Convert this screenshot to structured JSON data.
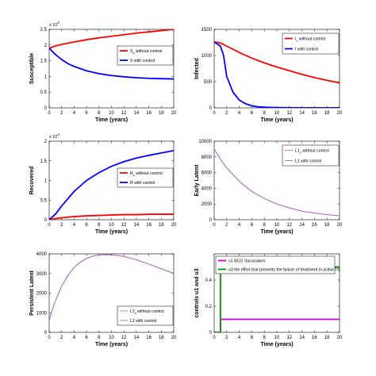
{
  "chart_data": [
    {
      "type": "line",
      "xlabel": "Time (years)",
      "ylabel": "Susceptible",
      "multiplier": "x 10^4",
      "xlim": [
        0,
        20
      ],
      "ylim": [
        0,
        2.5
      ],
      "xticks": [
        0,
        2,
        4,
        6,
        8,
        10,
        12,
        14,
        16,
        18,
        20
      ],
      "yticks": [
        0,
        0.5,
        1,
        1.5,
        2,
        2.5
      ],
      "ytick_labels": [
        "0",
        "0.5",
        "1",
        "1.5",
        "2",
        "2.5"
      ],
      "legend": "top-right",
      "grid": false,
      "series": [
        {
          "name": "S_s without control",
          "main": "S",
          "sub": "s",
          "rest": " without control",
          "color": "#ff0000",
          "x": [
            0,
            1,
            2,
            4,
            6,
            8,
            10,
            12,
            14,
            16,
            18,
            20
          ],
          "y": [
            1.9,
            1.97,
            2.02,
            2.1,
            2.17,
            2.23,
            2.28,
            2.33,
            2.38,
            2.42,
            2.46,
            2.5
          ]
        },
        {
          "name": "S with control",
          "main": "S with control",
          "color": "#0000ff",
          "x": [
            0,
            1,
            2,
            3,
            4,
            6,
            8,
            10,
            12,
            14,
            16,
            18,
            20
          ],
          "y": [
            1.9,
            1.7,
            1.54,
            1.41,
            1.32,
            1.18,
            1.09,
            1.03,
            0.99,
            0.96,
            0.94,
            0.93,
            0.92
          ]
        }
      ]
    },
    {
      "type": "line",
      "xlabel": "Time (years)",
      "ylabel": "Infected",
      "xlim": [
        0,
        20
      ],
      "ylim": [
        0,
        1500
      ],
      "xticks": [
        0,
        2,
        4,
        6,
        8,
        10,
        12,
        14,
        16,
        18,
        20
      ],
      "yticks": [
        0,
        500,
        1000,
        1500
      ],
      "ytick_labels": [
        "0",
        "500",
        "1000",
        "1500"
      ],
      "legend": "top-right",
      "grid": false,
      "series": [
        {
          "name": "I_s without control",
          "main": "I",
          "sub": "s",
          "rest": " without control",
          "color": "#ff0000",
          "x": [
            0,
            1,
            2,
            4,
            6,
            8,
            10,
            12,
            14,
            16,
            18,
            20
          ],
          "y": [
            1260,
            1240,
            1180,
            1060,
            950,
            860,
            780,
            710,
            640,
            580,
            525,
            480
          ]
        },
        {
          "name": "I with control",
          "main": "I with control",
          "color": "#0000ff",
          "x": [
            0,
            1,
            1.5,
            2,
            3,
            4,
            5,
            6,
            7,
            8,
            10,
            12,
            14,
            16,
            18,
            20
          ],
          "y": [
            1260,
            1180,
            1000,
            600,
            300,
            150,
            80,
            40,
            20,
            12,
            5,
            3,
            2,
            1,
            1,
            1
          ]
        }
      ]
    },
    {
      "type": "line",
      "xlabel": "Time (years)",
      "ylabel": "Recovered",
      "multiplier": "x 10^4",
      "xlim": [
        0,
        20
      ],
      "ylim": [
        0,
        2
      ],
      "xticks": [
        0,
        2,
        4,
        6,
        8,
        10,
        12,
        14,
        16,
        18,
        20
      ],
      "yticks": [
        0,
        0.5,
        1,
        1.5,
        2
      ],
      "ytick_labels": [
        "0",
        "0.5",
        "1",
        "1.5",
        "2"
      ],
      "legend": "center-right",
      "grid": false,
      "series": [
        {
          "name": "R_s without control",
          "main": "R",
          "sub": "s",
          "rest": " without control",
          "color": "#ff0000",
          "x": [
            0,
            1,
            2,
            4,
            6,
            8,
            10,
            12,
            14,
            16,
            18,
            20
          ],
          "y": [
            0,
            0.03,
            0.05,
            0.08,
            0.1,
            0.11,
            0.12,
            0.13,
            0.13,
            0.14,
            0.14,
            0.14
          ]
        },
        {
          "name": "R with control",
          "main": "R with control",
          "color": "#0000ff",
          "x": [
            0,
            1,
            2,
            4,
            6,
            8,
            10,
            12,
            14,
            16,
            18,
            20
          ],
          "y": [
            0,
            0.14,
            0.35,
            0.72,
            1.0,
            1.2,
            1.36,
            1.48,
            1.57,
            1.64,
            1.7,
            1.76
          ]
        }
      ]
    },
    {
      "type": "line",
      "xlabel": "Time (years)",
      "ylabel": "Early Latent",
      "xlim": [
        0,
        20
      ],
      "ylim": [
        0,
        10000
      ],
      "xticks": [
        0,
        2,
        4,
        6,
        8,
        10,
        12,
        14,
        16,
        18,
        20
      ],
      "yticks": [
        0,
        2000,
        4000,
        6000,
        8000,
        10000
      ],
      "ytick_labels": [
        "0",
        "2000",
        "4000",
        "6000",
        "8000",
        "10000"
      ],
      "legend": "top-right",
      "grid": false,
      "series": [
        {
          "name": "L1_s without control",
          "main": "L1",
          "sub": "s",
          "rest": " without control",
          "color": "#ff6666",
          "x": [
            0,
            1,
            2,
            4,
            6,
            8,
            10,
            12,
            14,
            16,
            18,
            20
          ],
          "y": [
            9000,
            7700,
            6600,
            4900,
            3600,
            2700,
            2000,
            1500,
            1100,
            850,
            650,
            500
          ]
        },
        {
          "name": "L1 with control",
          "main": "L1 with control",
          "color": "#9966cc",
          "x": [
            0,
            1,
            2,
            4,
            6,
            8,
            10,
            12,
            14,
            16,
            18,
            20
          ],
          "y": [
            9000,
            7700,
            6600,
            4900,
            3600,
            2700,
            2000,
            1500,
            1100,
            850,
            650,
            500
          ]
        }
      ]
    },
    {
      "type": "line",
      "xlabel": "Time (years)",
      "ylabel": "Persistent Latent",
      "xlim": [
        0,
        20
      ],
      "ylim": [
        0,
        4000
      ],
      "xticks": [
        0,
        2,
        4,
        6,
        8,
        10,
        12,
        14,
        16,
        18,
        20
      ],
      "yticks": [
        0,
        1000,
        2000,
        3000,
        4000
      ],
      "ytick_labels": [
        "0",
        "1000",
        "2000",
        "3000",
        "4000"
      ],
      "legend": "bottom-right",
      "grid": false,
      "series": [
        {
          "name": "L2_s without control",
          "main": "L2",
          "sub": "s",
          "rest": " without control",
          "color": "#ff6666",
          "x": [
            0,
            0.5,
            1,
            2,
            3,
            4,
            5,
            6,
            7,
            8,
            9,
            10,
            12,
            14,
            16,
            18,
            20
          ],
          "y": [
            600,
            1150,
            1600,
            2350,
            2900,
            3300,
            3580,
            3770,
            3880,
            3940,
            3960,
            3950,
            3870,
            3700,
            3480,
            3240,
            3000
          ]
        },
        {
          "name": "L2 with control",
          "main": "L2 with control",
          "color": "#9966cc",
          "x": [
            0,
            0.5,
            1,
            2,
            3,
            4,
            5,
            6,
            7,
            8,
            9,
            10,
            12,
            14,
            16,
            18,
            20
          ],
          "y": [
            600,
            1150,
            1600,
            2350,
            2900,
            3300,
            3580,
            3770,
            3880,
            3940,
            3960,
            3950,
            3870,
            3700,
            3480,
            3240,
            3000
          ]
        }
      ]
    },
    {
      "type": "line",
      "xlabel": "Time (years)",
      "ylabel": "controls u1 and u3",
      "xlim": [
        0,
        20
      ],
      "ylim": [
        0,
        0.6
      ],
      "xticks": [
        0,
        2,
        4,
        6,
        8,
        10,
        12,
        14,
        16,
        18,
        20
      ],
      "yticks": [
        0,
        0.2,
        0.4
      ],
      "ytick_labels": [
        "0",
        "0.2",
        "0.4"
      ],
      "legend": "top-left",
      "grid": false,
      "series": [
        {
          "name": "u1 BCG Vaccination",
          "main": "u1 BCG Vaccination",
          "color": "#cc00cc",
          "x": [
            0,
            1,
            1.01,
            20
          ],
          "y": [
            0,
            0,
            0.1,
            0.1
          ]
        },
        {
          "name": "u3 the effort that prevents the failure of treatment in active TB",
          "main": "u3 the effort that prevents the failure of treatment in active TB",
          "color": "#009900",
          "x": [
            0,
            1,
            1.01,
            20
          ],
          "y": [
            0,
            0,
            0.5,
            0.5
          ]
        }
      ]
    }
  ]
}
